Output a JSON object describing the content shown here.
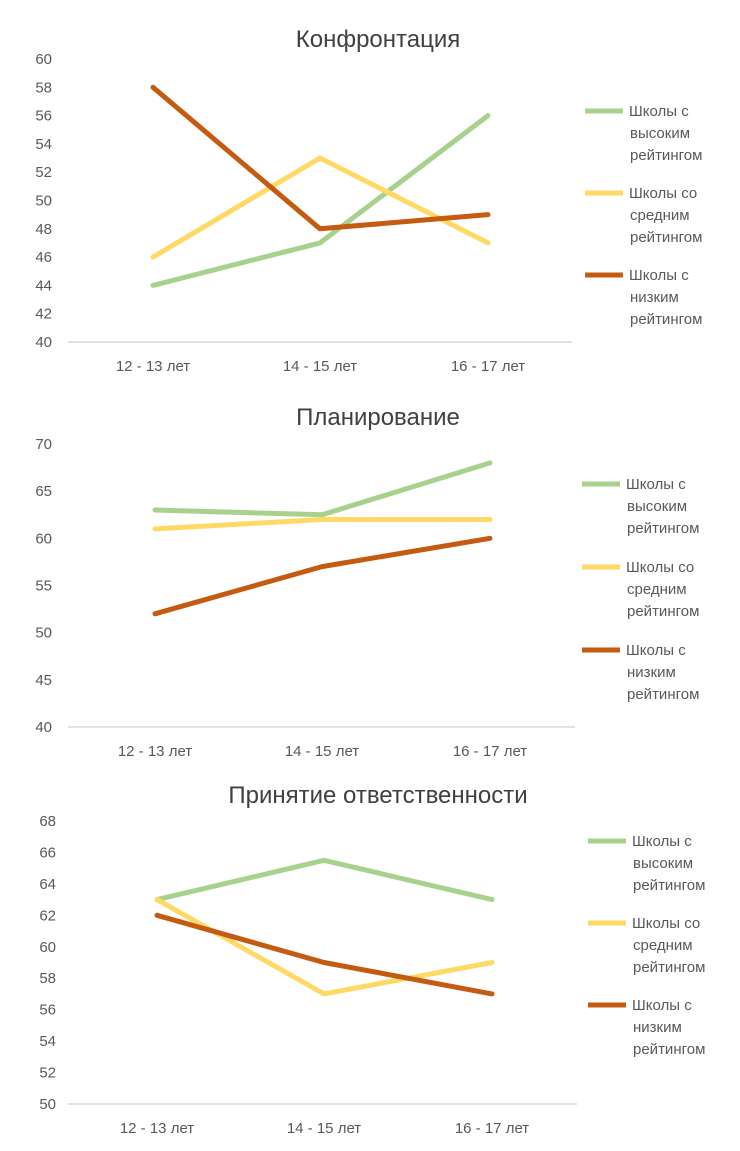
{
  "chart_data": [
    {
      "type": "line",
      "title": "Конфронтация",
      "categories": [
        "12 - 13 лет",
        "14 - 15 лет",
        "16 - 17 лет"
      ],
      "ylim": [
        40,
        60
      ],
      "yticks": [
        40,
        42,
        44,
        46,
        48,
        50,
        52,
        54,
        56,
        58,
        60
      ],
      "grid": false,
      "legend_position": "right",
      "series": [
        {
          "name": "Школы с высоким рейтингом",
          "legend_lines": [
            "Школы с",
            "высоким",
            "рейтингом"
          ],
          "color": "#a9d18e",
          "values": [
            44,
            47,
            56
          ]
        },
        {
          "name": "Школы со средним рейтингом",
          "legend_lines": [
            "Школы со",
            "средним",
            "рейтингом"
          ],
          "color": "#ffd966",
          "values": [
            46,
            53,
            47
          ]
        },
        {
          "name": "Школы с низким рейтингом",
          "legend_lines": [
            "Школы с",
            "низким",
            "рейтингом"
          ],
          "color": "#c55a11",
          "values": [
            58,
            48,
            49
          ]
        }
      ]
    },
    {
      "type": "line",
      "title": "Планирование",
      "categories": [
        "12 - 13 лет",
        "14 - 15 лет",
        "16 - 17 лет"
      ],
      "ylim": [
        40,
        70
      ],
      "yticks": [
        40,
        45,
        50,
        55,
        60,
        65,
        70
      ],
      "grid": false,
      "legend_position": "right",
      "series": [
        {
          "name": "Школы с высоким рейтингом",
          "legend_lines": [
            "Школы с",
            "высоким",
            "рейтингом"
          ],
          "color": "#a9d18e",
          "values": [
            63,
            62.5,
            68
          ]
        },
        {
          "name": "Школы со средним рейтингом",
          "legend_lines": [
            "Школы со",
            "средним",
            "рейтингом"
          ],
          "color": "#ffd966",
          "values": [
            61,
            62,
            62
          ]
        },
        {
          "name": "Школы с низким рейтингом",
          "legend_lines": [
            "Школы с",
            "низким",
            "рейтингом"
          ],
          "color": "#c55a11",
          "values": [
            52,
            57,
            60
          ]
        }
      ]
    },
    {
      "type": "line",
      "title": "Принятие ответственности",
      "categories": [
        "12 - 13 лет",
        "14 - 15 лет",
        "16 - 17 лет"
      ],
      "ylim": [
        50,
        68
      ],
      "yticks": [
        50,
        52,
        54,
        56,
        58,
        60,
        62,
        64,
        66,
        68
      ],
      "grid": false,
      "legend_position": "right",
      "series": [
        {
          "name": "Школы с высоким рейтингом",
          "legend_lines": [
            "Школы с",
            "высоким",
            "рейтингом"
          ],
          "color": "#a9d18e",
          "values": [
            63,
            65.5,
            63
          ]
        },
        {
          "name": "Школы со средним рейтингом",
          "legend_lines": [
            "Школы со",
            "средним",
            "рейтингом"
          ],
          "color": "#ffd966",
          "values": [
            63,
            57,
            59
          ]
        },
        {
          "name": "Школы с низким рейтингом",
          "legend_lines": [
            "Школы с",
            "низким",
            "рейтингом"
          ],
          "color": "#c55a11",
          "values": [
            62,
            59,
            57
          ]
        }
      ]
    }
  ]
}
